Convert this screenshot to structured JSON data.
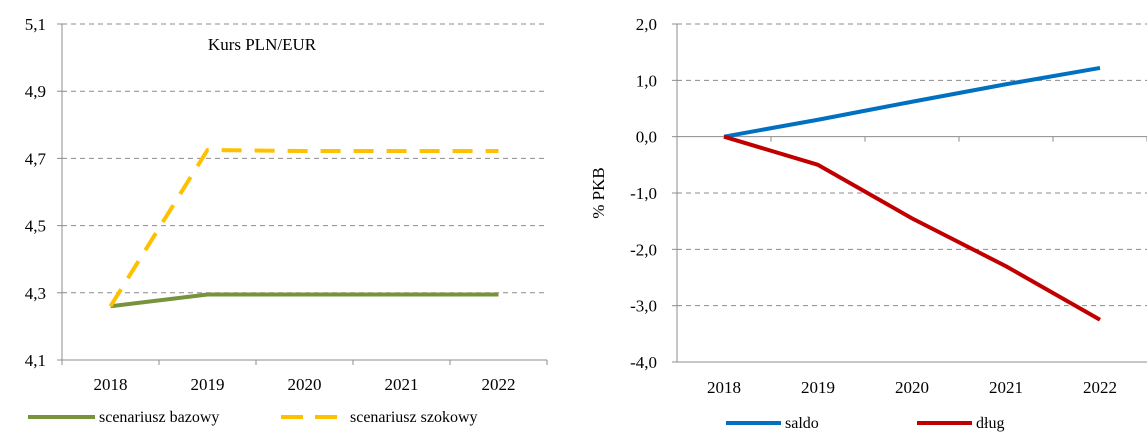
{
  "chart_data": [
    {
      "type": "line",
      "title": "Kurs PLN/EUR",
      "xlabel": "",
      "ylabel": "",
      "categories": [
        "2018",
        "2019",
        "2020",
        "2021",
        "2022"
      ],
      "ylim": [
        4.1,
        5.1
      ],
      "yticks": [
        "4,1",
        "4,3",
        "4,5",
        "4,7",
        "4,9",
        "5,1"
      ],
      "grid": true,
      "legend_position": "bottom",
      "series": [
        {
          "name": "scenariusz bazowy",
          "values": [
            4.26,
            4.295,
            4.295,
            4.295,
            4.295
          ],
          "color": "#77933c",
          "style": "solid"
        },
        {
          "name": "scenariusz szokowy",
          "values": [
            4.26,
            4.725,
            4.722,
            4.722,
            4.722
          ],
          "color": "#ffc000",
          "style": "dashed"
        }
      ]
    },
    {
      "type": "line",
      "title": "",
      "xlabel": "",
      "ylabel": "% PKB",
      "categories": [
        "2018",
        "2019",
        "2020",
        "2021",
        "2022"
      ],
      "ylim": [
        -4.0,
        2.0
      ],
      "yticks": [
        "-4,0",
        "-3,0",
        "-2,0",
        "-1,0",
        "0,0",
        "1,0",
        "2,0"
      ],
      "grid": true,
      "legend_position": "bottom",
      "series": [
        {
          "name": "saldo",
          "values": [
            0.0,
            0.3,
            0.62,
            0.93,
            1.22
          ],
          "color": "#0070c0",
          "style": "solid"
        },
        {
          "name": "dług",
          "values": [
            0.0,
            -0.5,
            -1.45,
            -2.3,
            -3.25
          ],
          "color": "#c00000",
          "style": "solid"
        }
      ]
    }
  ]
}
